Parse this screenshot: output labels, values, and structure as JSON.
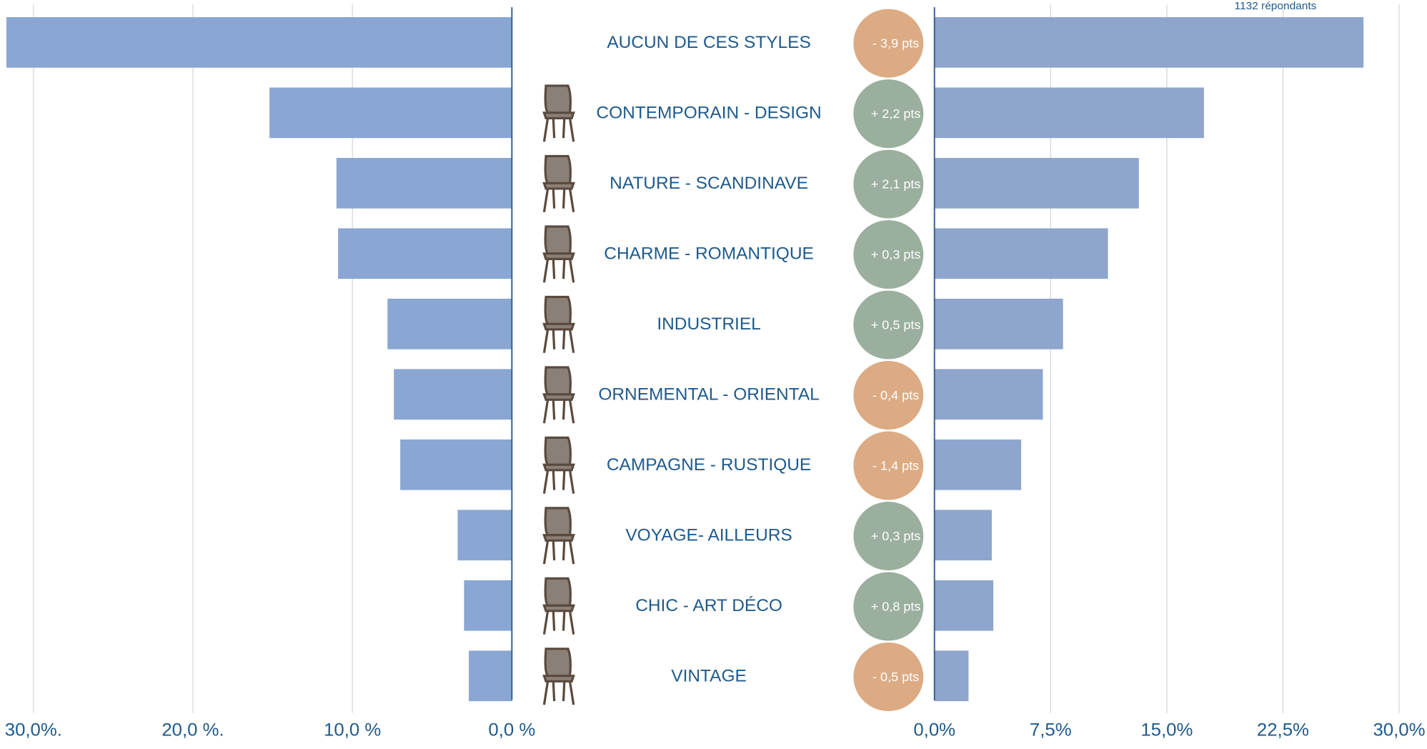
{
  "chart_data": [
    {
      "type": "bar",
      "orientation": "horizontal",
      "reversed": true,
      "categories": [
        "AUCUN DE CES STYLES",
        "CONTEMPORAIN - DESIGN",
        "NATURE - SCANDINAVE",
        "CHARME - ROMANTIQUE",
        "INDUSTRIEL",
        "ORNEMENTAL - ORIENTAL",
        "CAMPAGNE - RUSTIQUE",
        "VOYAGE- AILLEURS",
        "CHIC - ART DÉCO",
        "VINTAGE"
      ],
      "values": [
        31.7,
        15.2,
        11.0,
        10.9,
        7.8,
        7.4,
        7.0,
        3.4,
        3.0,
        2.7
      ],
      "color": "#8aa6d2",
      "xlim": [
        0,
        32.1
      ],
      "xticks": [
        {
          "value": 30,
          "label": "30,0%."
        },
        {
          "value": 20,
          "label": "20,0 %."
        },
        {
          "value": 10,
          "label": "10,0 %"
        },
        {
          "value": 0,
          "label": "0,0 %"
        }
      ],
      "grid": true
    },
    {
      "type": "bar",
      "orientation": "horizontal",
      "reversed": false,
      "note": "1132 répondants",
      "values": [
        27.7,
        17.4,
        13.2,
        11.2,
        8.3,
        7.0,
        5.6,
        3.7,
        3.8,
        2.2
      ],
      "color": "#8ea5cd",
      "xlim": [
        0,
        31.8
      ],
      "xticks": [
        {
          "value": 0,
          "label": "0,0%"
        },
        {
          "value": 7.5,
          "label": "7,5%"
        },
        {
          "value": 15,
          "label": "15,0%"
        },
        {
          "value": 22.5,
          "label": "22,5%"
        },
        {
          "value": 30,
          "label": "30,0%"
        }
      ],
      "grid": true
    },
    {
      "type": "badge",
      "values": [
        -3.9,
        2.2,
        2.1,
        0.3,
        0.5,
        -0.4,
        -1.4,
        0.3,
        0.8,
        -0.5
      ],
      "value_labels": [
        "- 3,9 pts",
        "+ 2,2 pts",
        "+ 2,1 pts",
        "+ 0,3 pts",
        "+ 0,5 pts",
        "- 0,4 pts",
        "- 1,4 pts",
        "+ 0,3 pts",
        "+ 0,8 pts",
        "- 0,5 pts"
      ],
      "positive_color": "#9aaf9d",
      "negative_color": "#dcab83"
    }
  ]
}
